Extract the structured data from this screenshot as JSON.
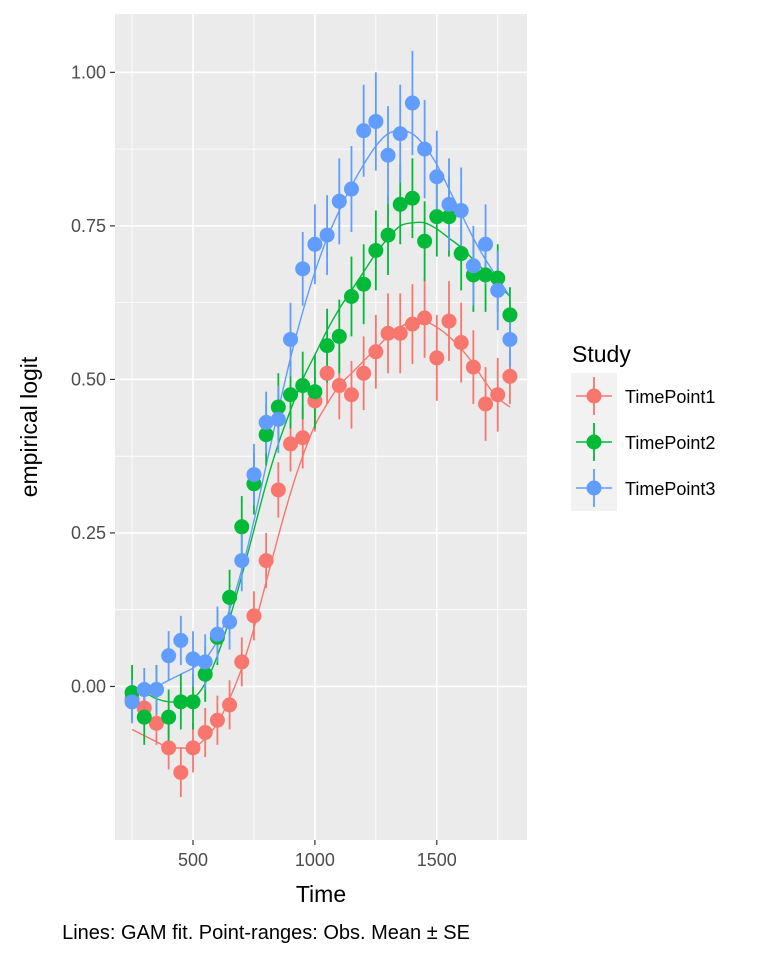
{
  "chart_data": {
    "type": "scatter",
    "xlabel": "Time",
    "ylabel": "empirical logit",
    "caption": "Lines: GAM fit. Point-ranges: Obs. Mean ± SE",
    "legend": {
      "title": "Study",
      "placement": "right"
    },
    "xlim": [
      180,
      1870
    ],
    "ylim": [
      -0.25,
      1.095
    ],
    "x_ticks": [
      500,
      1000,
      1500
    ],
    "x_tick_labels": [
      "500",
      "1000",
      "1500"
    ],
    "y_ticks": [
      0,
      0.25,
      0.5,
      0.75,
      1.0
    ],
    "y_tick_labels": [
      "0.00",
      "0.25",
      "0.50",
      "0.75",
      "1.00"
    ],
    "x": [
      250,
      300,
      350,
      400,
      450,
      500,
      550,
      600,
      650,
      700,
      750,
      800,
      850,
      900,
      950,
      1000,
      1050,
      1100,
      1150,
      1200,
      1250,
      1300,
      1350,
      1400,
      1450,
      1500,
      1550,
      1600,
      1650,
      1700,
      1750,
      1800
    ],
    "series": [
      {
        "name": "TimePoint1",
        "color": "#F8766D",
        "mean": [
          -0.02,
          -0.035,
          -0.06,
          -0.1,
          -0.14,
          -0.1,
          -0.075,
          -0.055,
          -0.03,
          0.04,
          0.115,
          0.205,
          0.32,
          0.395,
          0.405,
          0.465,
          0.51,
          0.49,
          0.475,
          0.51,
          0.545,
          0.575,
          0.575,
          0.59,
          0.6,
          0.535,
          0.595,
          0.56,
          0.52,
          0.46,
          0.475,
          0.505
        ],
        "se": [
          0.03,
          0.03,
          0.035,
          0.035,
          0.04,
          0.04,
          0.04,
          0.04,
          0.04,
          0.04,
          0.04,
          0.045,
          0.045,
          0.045,
          0.05,
          0.05,
          0.05,
          0.055,
          0.055,
          0.06,
          0.06,
          0.065,
          0.065,
          0.065,
          0.065,
          0.07,
          0.065,
          0.065,
          0.06,
          0.06,
          0.06,
          0.045
        ],
        "fit": [
          -0.07,
          -0.08,
          -0.09,
          -0.1,
          -0.1,
          -0.1,
          -0.085,
          -0.06,
          -0.02,
          0.03,
          0.095,
          0.17,
          0.245,
          0.315,
          0.375,
          0.425,
          0.46,
          0.49,
          0.51,
          0.53,
          0.55,
          0.57,
          0.585,
          0.595,
          0.595,
          0.585,
          0.57,
          0.55,
          0.525,
          0.495,
          0.47,
          0.455
        ]
      },
      {
        "name": "TimePoint2",
        "color": "#00BA38",
        "mean": [
          -0.01,
          -0.05,
          -0.005,
          -0.05,
          -0.025,
          -0.025,
          0.02,
          0.08,
          0.145,
          0.26,
          0.33,
          0.41,
          0.455,
          0.475,
          0.49,
          0.48,
          0.555,
          0.57,
          0.635,
          0.655,
          0.71,
          0.735,
          0.785,
          0.795,
          0.725,
          0.765,
          0.765,
          0.705,
          0.67,
          0.67,
          0.665,
          0.605
        ],
        "se": [
          0.045,
          0.045,
          0.04,
          0.045,
          0.045,
          0.045,
          0.045,
          0.045,
          0.045,
          0.05,
          0.05,
          0.05,
          0.055,
          0.055,
          0.055,
          0.06,
          0.06,
          0.06,
          0.065,
          0.065,
          0.065,
          0.065,
          0.065,
          0.065,
          0.065,
          0.065,
          0.065,
          0.06,
          0.06,
          0.06,
          0.055,
          0.045
        ],
        "fit": [
          -0.005,
          -0.01,
          -0.02,
          -0.025,
          -0.025,
          -0.02,
          0.005,
          0.05,
          0.11,
          0.18,
          0.255,
          0.33,
          0.395,
          0.45,
          0.5,
          0.54,
          0.58,
          0.615,
          0.645,
          0.675,
          0.705,
          0.73,
          0.75,
          0.755,
          0.755,
          0.745,
          0.73,
          0.715,
          0.695,
          0.675,
          0.655,
          0.635
        ]
      },
      {
        "name": "TimePoint3",
        "color": "#619CFF",
        "mean": [
          -0.025,
          -0.005,
          -0.005,
          0.05,
          0.075,
          0.045,
          0.04,
          0.085,
          0.105,
          0.205,
          0.345,
          0.43,
          0.435,
          0.565,
          0.68,
          0.72,
          0.735,
          0.79,
          0.81,
          0.905,
          0.92,
          0.865,
          0.9,
          0.95,
          0.875,
          0.83,
          0.785,
          0.775,
          0.685,
          0.72,
          0.645,
          0.565
        ],
        "se": [
          0.035,
          0.035,
          0.04,
          0.04,
          0.04,
          0.045,
          0.045,
          0.045,
          0.045,
          0.05,
          0.05,
          0.05,
          0.055,
          0.06,
          0.06,
          0.065,
          0.065,
          0.07,
          0.07,
          0.075,
          0.08,
          0.08,
          0.08,
          0.085,
          0.08,
          0.075,
          0.075,
          0.07,
          0.065,
          0.065,
          0.065,
          0.045
        ],
        "fit": [
          -0.02,
          -0.005,
          0.0,
          0.01,
          0.02,
          0.03,
          0.045,
          0.075,
          0.125,
          0.19,
          0.27,
          0.36,
          0.45,
          0.535,
          0.61,
          0.675,
          0.73,
          0.775,
          0.815,
          0.85,
          0.88,
          0.9,
          0.905,
          0.9,
          0.88,
          0.85,
          0.81,
          0.77,
          0.73,
          0.695,
          0.665,
          0.635
        ]
      }
    ],
    "grid": true
  }
}
